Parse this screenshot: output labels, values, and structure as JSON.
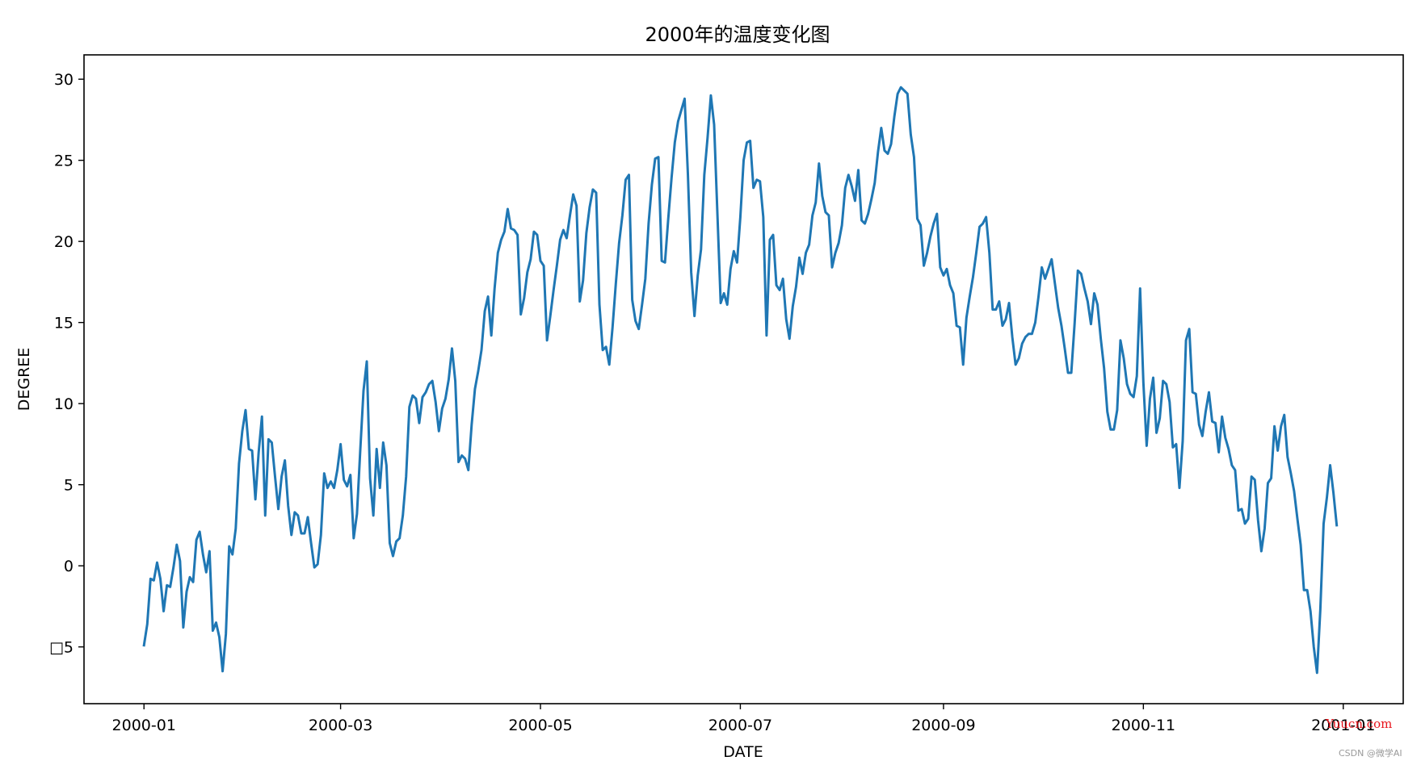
{
  "chart_data": {
    "type": "line",
    "title": "2000年的温度变化图",
    "xlabel": "DATE",
    "ylabel": "DEGREE",
    "x_start": "2000-01-01",
    "x_end": "2000-12-31",
    "xlim": [
      "2000-01-01",
      "2001-01-01"
    ],
    "ylim": [
      -8.5,
      31.5
    ],
    "x_ticks": [
      "2000-01",
      "2000-03",
      "2000-05",
      "2000-07",
      "2000-09",
      "2000-11",
      "2001-01"
    ],
    "y_ticks": [
      30,
      25,
      20,
      15,
      10,
      5,
      0,
      -5
    ],
    "y_tick_labels": [
      "30",
      "25",
      "20",
      "15",
      "10",
      "5",
      "0",
      "□5"
    ],
    "grid": false,
    "series": [
      {
        "color": "#1f77b4",
        "values": [
          -4.9,
          -3.6,
          -0.8,
          -0.9,
          0.2,
          -0.8,
          -2.8,
          -1.2,
          -1.3,
          -0.1,
          1.3,
          0.3,
          -3.8,
          -1.6,
          -0.7,
          -1.0,
          1.6,
          2.1,
          0.7,
          -0.4,
          0.9,
          -4.0,
          -3.5,
          -4.4,
          -6.5,
          -4.2,
          1.2,
          0.7,
          2.3,
          6.3,
          8.3,
          9.6,
          7.2,
          7.1,
          4.1,
          7.0,
          9.2,
          3.1,
          7.8,
          7.6,
          5.5,
          3.5,
          5.5,
          6.5,
          3.7,
          1.9,
          3.3,
          3.1,
          2.0,
          2.0,
          3.0,
          1.4,
          -0.1,
          0.1,
          1.9,
          5.7,
          4.8,
          5.2,
          4.8,
          5.9,
          7.5,
          5.3,
          4.9,
          5.6,
          1.7,
          3.2,
          7.1,
          10.8,
          12.6,
          5.4,
          3.1,
          7.2,
          4.8,
          7.6,
          6.2,
          1.4,
          0.6,
          1.5,
          1.7,
          3.1,
          5.5,
          9.8,
          10.5,
          10.3,
          8.8,
          10.4,
          10.7,
          11.2,
          11.4,
          10.1,
          8.3,
          9.7,
          10.3,
          11.5,
          13.4,
          11.4,
          6.4,
          6.8,
          6.6,
          5.9,
          8.7,
          10.9,
          12.0,
          13.3,
          15.7,
          16.6,
          14.2,
          17.1,
          19.3,
          20.1,
          20.6,
          22.0,
          20.8,
          20.7,
          20.4,
          15.5,
          16.5,
          18.1,
          18.9,
          20.6,
          20.4,
          18.8,
          18.5,
          13.9,
          15.4,
          17.0,
          18.5,
          20.1,
          20.7,
          20.2,
          21.6,
          22.9,
          22.2,
          16.3,
          17.6,
          20.5,
          22.1,
          23.2,
          23.0,
          16.1,
          13.3,
          13.5,
          12.4,
          14.7,
          17.4,
          19.9,
          21.6,
          23.8,
          24.1,
          16.4,
          15.1,
          14.6,
          16.1,
          17.7,
          21.1,
          23.5,
          25.1,
          25.2,
          18.8,
          18.7,
          21.4,
          23.9,
          26.1,
          27.4,
          28.1,
          28.8,
          24.1,
          18.1,
          15.4,
          17.9,
          19.5,
          24.1,
          26.4,
          29.0,
          27.2,
          21.7,
          16.2,
          16.8,
          16.1,
          18.3,
          19.4,
          18.7,
          21.5,
          25.0,
          26.1,
          26.2,
          23.3,
          23.8,
          23.7,
          21.5,
          14.2,
          20.1,
          20.4,
          17.3,
          17.0,
          17.7,
          15.2,
          14.0,
          16.0,
          17.2,
          19.0,
          18.0,
          19.3,
          19.8,
          21.6,
          22.4,
          24.8,
          22.8,
          21.8,
          21.6,
          18.4,
          19.3,
          19.9,
          21.0,
          23.3,
          24.1,
          23.4,
          22.5,
          24.4,
          21.3,
          21.1,
          21.7,
          22.6,
          23.6,
          25.5,
          27.0,
          25.6,
          25.4,
          26.0,
          27.7,
          29.1,
          29.5,
          29.3,
          29.1,
          26.6,
          25.2,
          21.4,
          21.0,
          18.5,
          19.3,
          20.3,
          21.1,
          21.7,
          18.4,
          17.9,
          18.3,
          17.3,
          16.8,
          14.8,
          14.7,
          12.4,
          15.3,
          16.6,
          17.8,
          19.3,
          20.9,
          21.1,
          21.5,
          19.3,
          15.8,
          15.8,
          16.3,
          14.8,
          15.2,
          16.2,
          14.1,
          12.4,
          12.8,
          13.7,
          14.1,
          14.3,
          14.3,
          15.0,
          16.6,
          18.4,
          17.7,
          18.3,
          18.9,
          17.4,
          15.9,
          14.8,
          13.4,
          11.9,
          11.9,
          14.9,
          18.2,
          18.0,
          17.1,
          16.3,
          14.9,
          16.8,
          16.1,
          14.0,
          12.2,
          9.5,
          8.4,
          8.4,
          9.6,
          13.9,
          12.8,
          11.2,
          10.6,
          10.4,
          11.7,
          17.1,
          11.3,
          7.4,
          10.3,
          11.6,
          8.2,
          9.1,
          11.4,
          11.2,
          10.1,
          7.3,
          7.5,
          4.8,
          7.7,
          13.9,
          14.6,
          10.7,
          10.6,
          8.7,
          8.0,
          9.5,
          10.7,
          8.9,
          8.8,
          7.0,
          9.2,
          7.9,
          7.2,
          6.2,
          5.9,
          3.4,
          3.5,
          2.6,
          2.9,
          5.5,
          5.3,
          2.8,
          0.9,
          2.3,
          5.1,
          5.4,
          8.6,
          7.1,
          8.6,
          9.3,
          6.7,
          5.7,
          4.6,
          2.9,
          1.3,
          -1.5,
          -1.5,
          -2.8,
          -5.0,
          -6.6,
          -2.7,
          2.6,
          4.2,
          6.2,
          4.5,
          2.5
        ]
      }
    ]
  },
  "watermark": {
    "line1": "Yuucn.com",
    "line2": "CSDN @微学AI",
    "line1_color": "#e8141c"
  }
}
